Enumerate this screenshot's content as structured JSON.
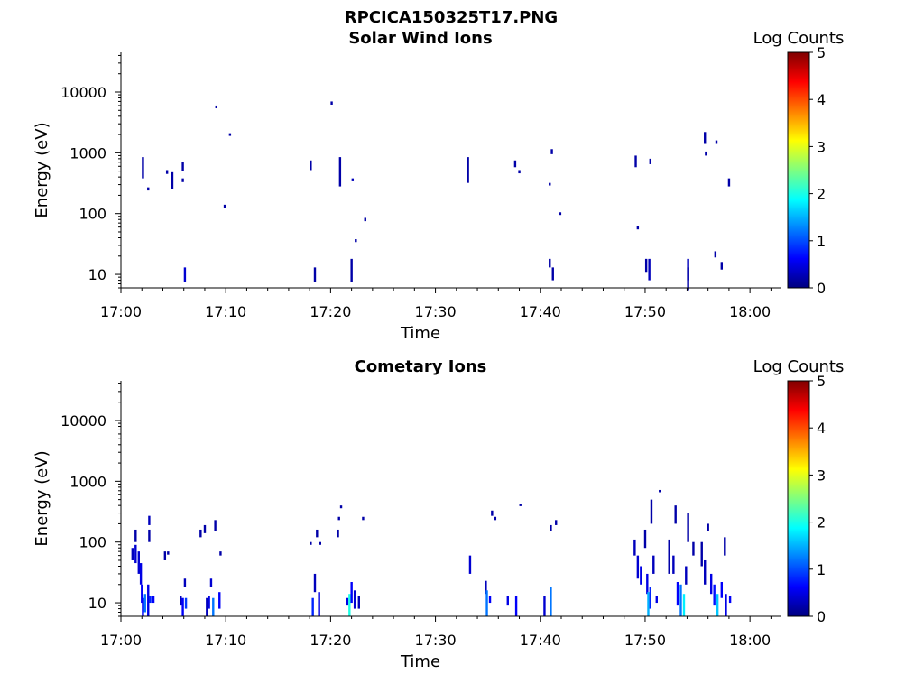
{
  "figure": {
    "title": "RPCICA150325T17.PNG"
  },
  "colormap": {
    "name": "jet",
    "stops": [
      "#00007f",
      "#0000ff",
      "#007fff",
      "#00ffff",
      "#7fff7f",
      "#ffff00",
      "#ff7f00",
      "#ff0000",
      "#7f0000"
    ]
  },
  "chart_data": [
    {
      "type": "heatmap",
      "title": "Solar Wind Ions",
      "xlabel": "Time",
      "ylabel": "Energy (eV)",
      "colorbar_label": "Log Counts",
      "x_ticks": [
        "17:00",
        "17:10",
        "17:20",
        "17:30",
        "17:40",
        "17:50",
        "18:00"
      ],
      "y_ticks": [
        "10",
        "100",
        "1000",
        "10000"
      ],
      "y_scale": "log",
      "xlim_minutes": [
        0,
        63
      ],
      "ylim": [
        6,
        45000
      ],
      "clim": [
        0,
        5
      ],
      "cbar_ticks": [
        "0",
        "1",
        "2",
        "3",
        "4",
        "5"
      ],
      "cells": [
        [
          2.0,
          380,
          850,
          0.2
        ],
        [
          2.5,
          240,
          270,
          0.2
        ],
        [
          4.3,
          450,
          520,
          0.2
        ],
        [
          4.8,
          250,
          480,
          0.2
        ],
        [
          5.8,
          500,
          700,
          0.2
        ],
        [
          5.8,
          330,
          380,
          0.2
        ],
        [
          6.0,
          7.5,
          13,
          0.4
        ],
        [
          9.0,
          5400,
          6000,
          0.2
        ],
        [
          9.8,
          125,
          140,
          0.2
        ],
        [
          10.3,
          1900,
          2100,
          0.2
        ],
        [
          18.0,
          520,
          750,
          0.2
        ],
        [
          18.4,
          7.5,
          13,
          0.2
        ],
        [
          20.0,
          6200,
          7000,
          0.2
        ],
        [
          20.8,
          280,
          850,
          0.2
        ],
        [
          21.9,
          7.5,
          18,
          0.2
        ],
        [
          22.0,
          340,
          380,
          0.3
        ],
        [
          22.3,
          34,
          38,
          0.2
        ],
        [
          23.2,
          75,
          85,
          0.2
        ],
        [
          33.0,
          320,
          850,
          0.2
        ],
        [
          37.5,
          580,
          750,
          0.2
        ],
        [
          37.9,
          460,
          520,
          0.2
        ],
        [
          40.8,
          13,
          18,
          0.2
        ],
        [
          40.8,
          290,
          320,
          0.2
        ],
        [
          41.0,
          950,
          1150,
          0.2
        ],
        [
          41.1,
          8,
          13,
          0.2
        ],
        [
          41.8,
          95,
          105,
          0.2
        ],
        [
          49.0,
          580,
          900,
          0.2
        ],
        [
          49.2,
          55,
          62,
          0.2
        ],
        [
          50.0,
          11,
          18,
          0.2
        ],
        [
          50.3,
          8,
          18,
          0.3
        ],
        [
          50.4,
          650,
          800,
          0.2
        ],
        [
          54.0,
          8,
          18,
          0.3
        ],
        [
          54.0,
          5.5,
          13,
          0.2
        ],
        [
          55.6,
          1400,
          2200,
          0.2
        ],
        [
          55.7,
          900,
          1050,
          0.2
        ],
        [
          56.6,
          19,
          24,
          0.2
        ],
        [
          56.7,
          1400,
          1600,
          0.2
        ],
        [
          57.2,
          12,
          16,
          0.2
        ],
        [
          57.9,
          280,
          380,
          0.2
        ]
      ]
    },
    {
      "type": "heatmap",
      "title": "Cometary Ions",
      "xlabel": "Time",
      "ylabel": "Energy (eV)",
      "colorbar_label": "Log Counts",
      "x_ticks": [
        "17:00",
        "17:10",
        "17:20",
        "17:30",
        "17:40",
        "17:50",
        "18:00"
      ],
      "y_ticks": [
        "10",
        "100",
        "1000",
        "10000"
      ],
      "y_scale": "log",
      "xlim_minutes": [
        0,
        63
      ],
      "ylim": [
        6,
        45000
      ],
      "clim": [
        0,
        5
      ],
      "cbar_ticks": [
        "0",
        "1",
        "2",
        "3",
        "4",
        "5"
      ],
      "cells": [
        [
          1.0,
          50,
          80,
          0.3
        ],
        [
          1.3,
          45,
          90,
          0.4
        ],
        [
          1.3,
          100,
          160,
          0.2
        ],
        [
          1.6,
          30,
          70,
          0.4
        ],
        [
          1.8,
          20,
          45,
          0.5
        ],
        [
          1.9,
          10,
          20,
          0.6
        ],
        [
          2.0,
          6,
          12,
          0.6
        ],
        [
          2.2,
          7,
          14,
          1.2
        ],
        [
          2.5,
          6,
          20,
          0.5
        ],
        [
          2.6,
          190,
          270,
          0.3
        ],
        [
          2.6,
          100,
          160,
          0.2
        ],
        [
          2.7,
          10,
          13,
          0.8
        ],
        [
          3.0,
          10,
          13,
          0.6
        ],
        [
          4.1,
          50,
          70,
          0.2
        ],
        [
          4.4,
          62,
          70,
          0.2
        ],
        [
          5.6,
          9,
          13,
          0.3
        ],
        [
          5.8,
          6,
          12,
          0.6
        ],
        [
          6.0,
          18,
          25,
          0.3
        ],
        [
          6.1,
          8,
          12,
          0.9
        ],
        [
          7.5,
          120,
          160,
          0.2
        ],
        [
          7.9,
          140,
          190,
          0.2
        ],
        [
          8.1,
          6,
          12,
          0.3
        ],
        [
          8.3,
          8,
          13,
          0.5
        ],
        [
          8.5,
          18,
          25,
          0.4
        ],
        [
          8.7,
          6,
          12,
          1.2
        ],
        [
          8.9,
          150,
          230,
          0.2
        ],
        [
          9.3,
          8,
          15,
          0.6
        ],
        [
          9.4,
          60,
          70,
          0.2
        ],
        [
          18.0,
          90,
          100,
          0.2
        ],
        [
          18.2,
          6,
          12,
          0.8
        ],
        [
          18.4,
          15,
          30,
          0.3
        ],
        [
          18.6,
          120,
          160,
          0.2
        ],
        [
          18.8,
          6,
          15,
          0.5
        ],
        [
          18.9,
          90,
          100,
          0.2
        ],
        [
          20.6,
          120,
          160,
          0.2
        ],
        [
          20.7,
          230,
          260,
          0.2
        ],
        [
          20.9,
          360,
          400,
          0.2
        ],
        [
          21.5,
          9,
          12,
          0.5
        ],
        [
          21.7,
          6,
          14,
          2.0
        ],
        [
          21.9,
          10,
          22,
          0.6
        ],
        [
          22.2,
          8,
          16,
          0.4
        ],
        [
          22.6,
          8,
          13,
          0.3
        ],
        [
          23.0,
          230,
          260,
          0.2
        ],
        [
          33.2,
          30,
          60,
          0.4
        ],
        [
          34.7,
          14,
          23,
          0.3
        ],
        [
          34.8,
          6,
          16,
          1.2
        ],
        [
          35.1,
          10,
          13,
          0.6
        ],
        [
          35.3,
          270,
          330,
          0.2
        ],
        [
          35.6,
          230,
          260,
          0.2
        ],
        [
          36.8,
          9,
          13,
          0.5
        ],
        [
          37.6,
          6,
          13,
          0.6
        ],
        [
          38.0,
          390,
          430,
          0.2
        ],
        [
          40.3,
          6,
          13,
          0.4
        ],
        [
          40.9,
          6,
          18,
          1.2
        ],
        [
          40.9,
          150,
          190,
          0.2
        ],
        [
          41.4,
          190,
          230,
          0.2
        ],
        [
          48.9,
          60,
          110,
          0.3
        ],
        [
          49.2,
          25,
          60,
          0.4
        ],
        [
          49.5,
          20,
          40,
          0.5
        ],
        [
          49.9,
          80,
          160,
          0.2
        ],
        [
          50.1,
          14,
          30,
          0.5
        ],
        [
          50.2,
          6,
          15,
          1.5
        ],
        [
          50.4,
          8,
          18,
          0.8
        ],
        [
          50.5,
          200,
          500,
          0.2
        ],
        [
          50.7,
          30,
          60,
          0.3
        ],
        [
          51.0,
          10,
          13,
          0.5
        ],
        [
          51.3,
          660,
          720,
          0.2
        ],
        [
          52.2,
          30,
          110,
          0.2
        ],
        [
          52.6,
          30,
          60,
          0.3
        ],
        [
          52.8,
          200,
          400,
          0.2
        ],
        [
          53.0,
          9,
          22,
          0.6
        ],
        [
          53.3,
          6,
          20,
          1.2
        ],
        [
          53.6,
          6,
          14,
          1.8
        ],
        [
          53.8,
          20,
          40,
          0.3
        ],
        [
          54.0,
          100,
          300,
          0.2
        ],
        [
          54.5,
          60,
          100,
          0.2
        ],
        [
          55.3,
          40,
          100,
          0.2
        ],
        [
          55.6,
          20,
          50,
          0.3
        ],
        [
          55.9,
          150,
          200,
          0.2
        ],
        [
          56.2,
          14,
          30,
          0.5
        ],
        [
          56.5,
          9,
          20,
          0.7
        ],
        [
          56.8,
          6,
          14,
          1.6
        ],
        [
          57.2,
          12,
          22,
          0.6
        ],
        [
          57.5,
          60,
          120,
          0.2
        ],
        [
          57.6,
          6,
          14,
          0.5
        ],
        [
          58.0,
          10,
          13,
          0.6
        ]
      ]
    }
  ]
}
